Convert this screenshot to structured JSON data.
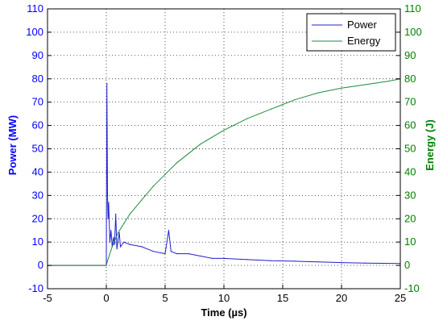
{
  "chart_data": {
    "type": "line",
    "title": "",
    "xlabel": "Time (µs)",
    "ylabel_left": "Power (MW)",
    "ylabel_right": "Energy (J)",
    "xlim": [
      -5,
      25
    ],
    "ylim_left": [
      -10,
      110
    ],
    "ylim_right": [
      -10,
      110
    ],
    "x_ticks": [
      "-5",
      "0",
      "5",
      "10",
      "15",
      "20",
      "25"
    ],
    "y_ticks_left": [
      "-10",
      "0",
      "10",
      "20",
      "30",
      "40",
      "50",
      "60",
      "70",
      "80",
      "90",
      "100",
      "110"
    ],
    "y_ticks_right": [
      "-10",
      "0",
      "10",
      "20",
      "30",
      "40",
      "50",
      "60",
      "70",
      "80",
      "90",
      "100",
      "110"
    ],
    "grid": true,
    "legend_position": "top-right",
    "colors": {
      "power": "#1f1fd0",
      "energy": "#1e8a3c",
      "left_axis": "#0000ff",
      "right_axis": "#008000"
    },
    "series": [
      {
        "name": "Power",
        "axis": "left",
        "x": [
          -5,
          0,
          0.05,
          0.1,
          0.15,
          0.2,
          0.3,
          0.4,
          0.5,
          0.6,
          0.7,
          0.8,
          0.9,
          1.0,
          1.1,
          1.2,
          1.5,
          2,
          3,
          4,
          5,
          5.3,
          5.5,
          6,
          7,
          8,
          9,
          10,
          12,
          14,
          16,
          18,
          20,
          22,
          25
        ],
        "values": [
          0,
          0,
          78,
          30,
          20,
          27,
          10,
          15,
          8,
          12,
          9,
          22,
          7,
          11,
          14,
          8,
          10,
          9,
          8,
          6,
          5,
          15,
          6,
          5,
          5,
          4,
          3,
          3,
          2.5,
          2,
          1.8,
          1.5,
          1.2,
          1,
          0.8
        ]
      },
      {
        "name": "Energy",
        "axis": "right",
        "x": [
          -5,
          0,
          0.1,
          0.5,
          1,
          1.5,
          2,
          3,
          4,
          5,
          6,
          7,
          8,
          10,
          12,
          14,
          15,
          16,
          18,
          20,
          22,
          24,
          25
        ],
        "values": [
          0,
          0,
          2,
          8,
          14,
          18,
          22,
          28,
          34,
          39,
          44,
          48,
          52,
          58,
          63,
          67,
          69,
          71,
          74,
          76,
          77.5,
          79,
          80
        ]
      }
    ]
  }
}
